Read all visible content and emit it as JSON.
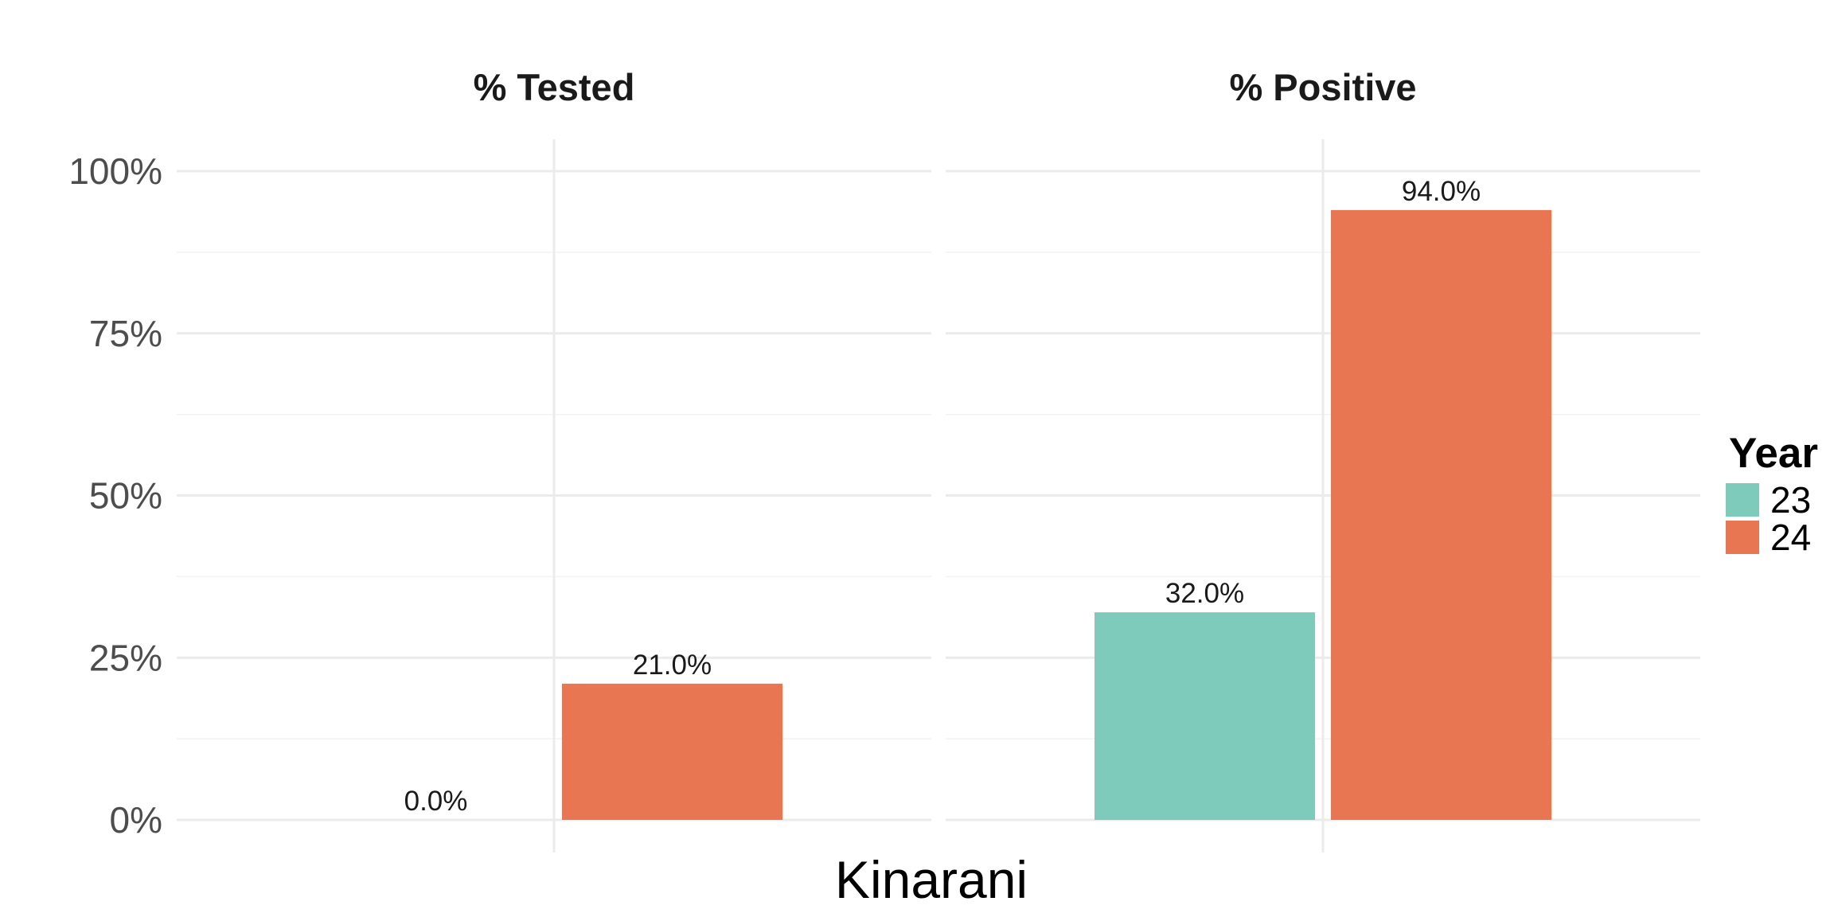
{
  "chart_data": {
    "type": "bar",
    "xlabel": "Kinarani",
    "ylabel": "",
    "ylim": [
      0,
      1
    ],
    "y_ticks": [
      0,
      0.25,
      0.5,
      0.75,
      1
    ],
    "y_tick_labels": [
      "0%",
      "25%",
      "50%",
      "75%",
      "100%"
    ],
    "grid": true,
    "legend": {
      "title": "Year",
      "placement": "right",
      "entries": [
        {
          "name": "23",
          "color": "#7FCBBB"
        },
        {
          "name": "24",
          "color": "#E97653"
        }
      ]
    },
    "facets": [
      {
        "title": "% Tested",
        "series": [
          {
            "name": "23",
            "value": 0.0,
            "label": "0.0%"
          },
          {
            "name": "24",
            "value": 0.21,
            "label": "21.0%"
          }
        ]
      },
      {
        "title": "% Positive",
        "series": [
          {
            "name": "23",
            "value": 0.32,
            "label": "32.0%"
          },
          {
            "name": "24",
            "value": 0.94,
            "label": "94.0%"
          }
        ]
      }
    ]
  }
}
